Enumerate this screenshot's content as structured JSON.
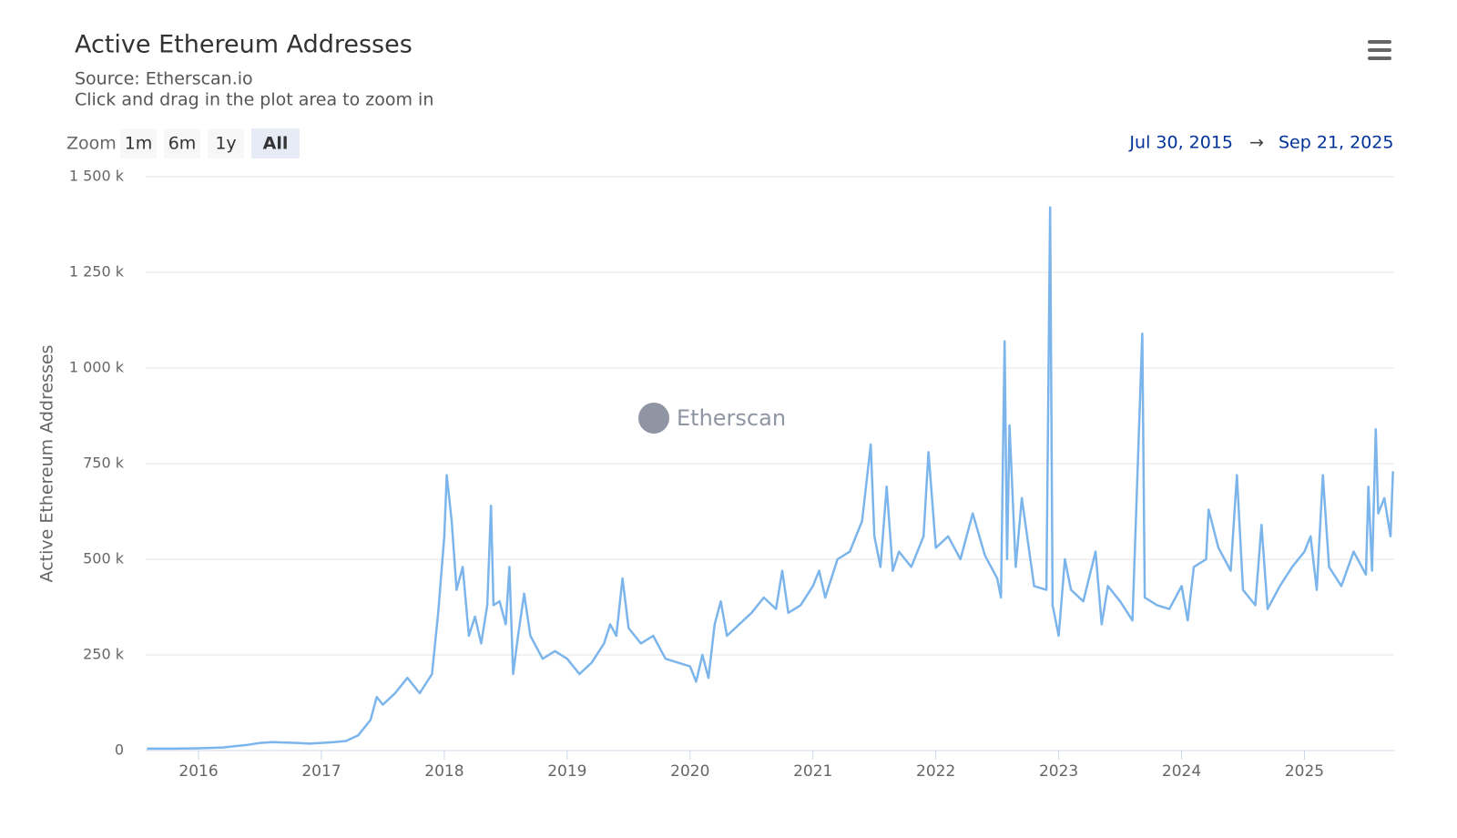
{
  "chart_data": {
    "type": "line",
    "title": "Active Ethereum Addresses",
    "subtitle": "Source: Etherscan.io",
    "hint": "Click and drag in the plot area to zoom in",
    "y_label": "Active Ethereum Addresses",
    "watermark": "Etherscan",
    "range_selector": {
      "label": "Zoom",
      "buttons": [
        "1m",
        "6m",
        "1y",
        "All"
      ],
      "selected": "All"
    },
    "date_range": {
      "from": "Jul 30, 2015",
      "arrow": "→",
      "to": "Sep 21, 2025"
    },
    "xlim": [
      2015.57,
      2025.73
    ],
    "xticks": [
      2016,
      2017,
      2018,
      2019,
      2020,
      2021,
      2022,
      2023,
      2024,
      2025
    ],
    "ylim": [
      0,
      1500000
    ],
    "yticks": [
      0,
      {
        "value": 250000,
        "label": "250 k"
      },
      {
        "value": 500000,
        "label": "500 k"
      },
      {
        "value": 750000,
        "label": "750 k"
      },
      {
        "value": 1000000,
        "label": "1 000 k"
      },
      {
        "value": 1250000,
        "label": "1 250 k"
      },
      {
        "value": 1500000,
        "label": "1 500 k"
      }
    ],
    "grid": true,
    "series": [
      {
        "name": "Active Ethereum Addresses",
        "color": "#7cb5ec",
        "x": [
          2015.58,
          2015.8,
          2016.0,
          2016.2,
          2016.4,
          2016.5,
          2016.6,
          2016.8,
          2016.9,
          2017.0,
          2017.1,
          2017.2,
          2017.3,
          2017.4,
          2017.45,
          2017.5,
          2017.6,
          2017.7,
          2017.8,
          2017.9,
          2017.95,
          2018.0,
          2018.02,
          2018.06,
          2018.1,
          2018.15,
          2018.2,
          2018.25,
          2018.3,
          2018.35,
          2018.38,
          2018.4,
          2018.45,
          2018.5,
          2018.53,
          2018.56,
          2018.6,
          2018.65,
          2018.7,
          2018.8,
          2018.9,
          2019.0,
          2019.1,
          2019.2,
          2019.3,
          2019.35,
          2019.4,
          2019.45,
          2019.5,
          2019.6,
          2019.7,
          2019.8,
          2019.9,
          2020.0,
          2020.05,
          2020.1,
          2020.15,
          2020.2,
          2020.25,
          2020.3,
          2020.4,
          2020.5,
          2020.6,
          2020.7,
          2020.75,
          2020.8,
          2020.9,
          2021.0,
          2021.05,
          2021.1,
          2021.2,
          2021.3,
          2021.4,
          2021.47,
          2021.5,
          2021.55,
          2021.6,
          2021.65,
          2021.7,
          2021.8,
          2021.9,
          2021.94,
          2022.0,
          2022.1,
          2022.2,
          2022.3,
          2022.4,
          2022.5,
          2022.53,
          2022.56,
          2022.58,
          2022.6,
          2022.65,
          2022.7,
          2022.8,
          2022.9,
          2022.93,
          2022.95,
          2023.0,
          2023.05,
          2023.1,
          2023.2,
          2023.3,
          2023.35,
          2023.4,
          2023.5,
          2023.6,
          2023.68,
          2023.7,
          2023.8,
          2023.9,
          2024.0,
          2024.05,
          2024.1,
          2024.2,
          2024.22,
          2024.3,
          2024.4,
          2024.45,
          2024.5,
          2024.6,
          2024.65,
          2024.7,
          2024.8,
          2024.9,
          2025.0,
          2025.05,
          2025.1,
          2025.15,
          2025.2,
          2025.3,
          2025.4,
          2025.5,
          2025.52,
          2025.55,
          2025.58,
          2025.6,
          2025.65,
          2025.7,
          2025.72
        ],
        "values": [
          5000,
          5000,
          6000,
          8000,
          15000,
          20000,
          22000,
          20000,
          18000,
          20000,
          22000,
          25000,
          40000,
          80000,
          140000,
          120000,
          150000,
          190000,
          150000,
          200000,
          360000,
          560000,
          720000,
          600000,
          420000,
          480000,
          300000,
          350000,
          280000,
          380000,
          640000,
          380000,
          390000,
          330000,
          480000,
          200000,
          300000,
          410000,
          300000,
          240000,
          260000,
          240000,
          200000,
          230000,
          280000,
          330000,
          300000,
          450000,
          320000,
          280000,
          300000,
          240000,
          230000,
          220000,
          180000,
          250000,
          190000,
          330000,
          390000,
          300000,
          330000,
          360000,
          400000,
          370000,
          470000,
          360000,
          380000,
          430000,
          470000,
          400000,
          500000,
          520000,
          600000,
          800000,
          560000,
          480000,
          690000,
          470000,
          520000,
          480000,
          560000,
          780000,
          530000,
          560000,
          500000,
          620000,
          510000,
          450000,
          400000,
          1070000,
          500000,
          850000,
          480000,
          660000,
          430000,
          420000,
          1420000,
          380000,
          300000,
          500000,
          420000,
          390000,
          520000,
          330000,
          430000,
          390000,
          340000,
          1090000,
          400000,
          380000,
          370000,
          430000,
          340000,
          480000,
          500000,
          630000,
          530000,
          470000,
          720000,
          420000,
          380000,
          590000,
          370000,
          430000,
          480000,
          520000,
          560000,
          420000,
          720000,
          480000,
          430000,
          520000,
          460000,
          690000,
          470000,
          840000,
          620000,
          660000,
          560000,
          730000
        ]
      }
    ]
  }
}
